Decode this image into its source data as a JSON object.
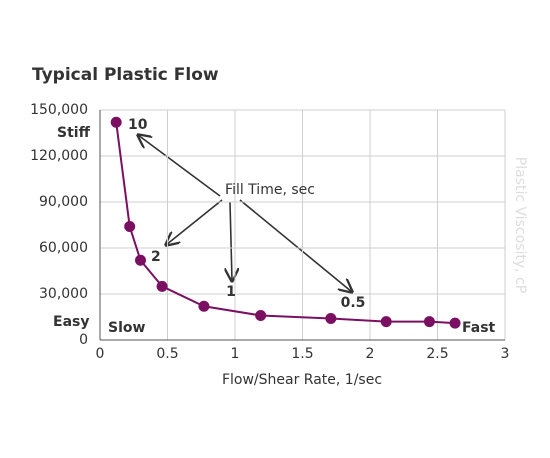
{
  "chart_data": {
    "type": "line",
    "title": "Typical Plastic Flow",
    "x_label": "Flow/Shear Rate, 1/sec",
    "y_label": "Plastic Viscosity, cP",
    "annotations": [
      "10",
      "2",
      "1",
      "0.5",
      "Fill Time, sec",
      "Stiff",
      "Easy",
      "Slow",
      "Fast"
    ],
    "series": [
      {
        "name": "Plastic Viscosity",
        "color": "#7b1062",
        "x": [
          0.12,
          0.22,
          0.3,
          0.46,
          0.77,
          1.19,
          1.71,
          2.12,
          2.44,
          2.63
        ],
        "values": [
          142000,
          74000,
          52000,
          35000,
          22000,
          16000,
          14000,
          12000,
          12000,
          11000
        ]
      }
    ],
    "xlim": [
      0,
      3
    ],
    "xticks": [
      0,
      0.5,
      1,
      1.5,
      2,
      2.5,
      3
    ],
    "ylim": [
      0,
      150000
    ],
    "yticks": [
      0,
      {
        "value": 30000,
        "label": "30,000"
      },
      {
        "value": 60000,
        "label": "60,000"
      },
      {
        "value": 90000,
        "label": "90,000"
      },
      {
        "value": 120000,
        "label": "120,000"
      },
      {
        "value": 150000,
        "label": "150,000"
      }
    ],
    "grid": true
  }
}
